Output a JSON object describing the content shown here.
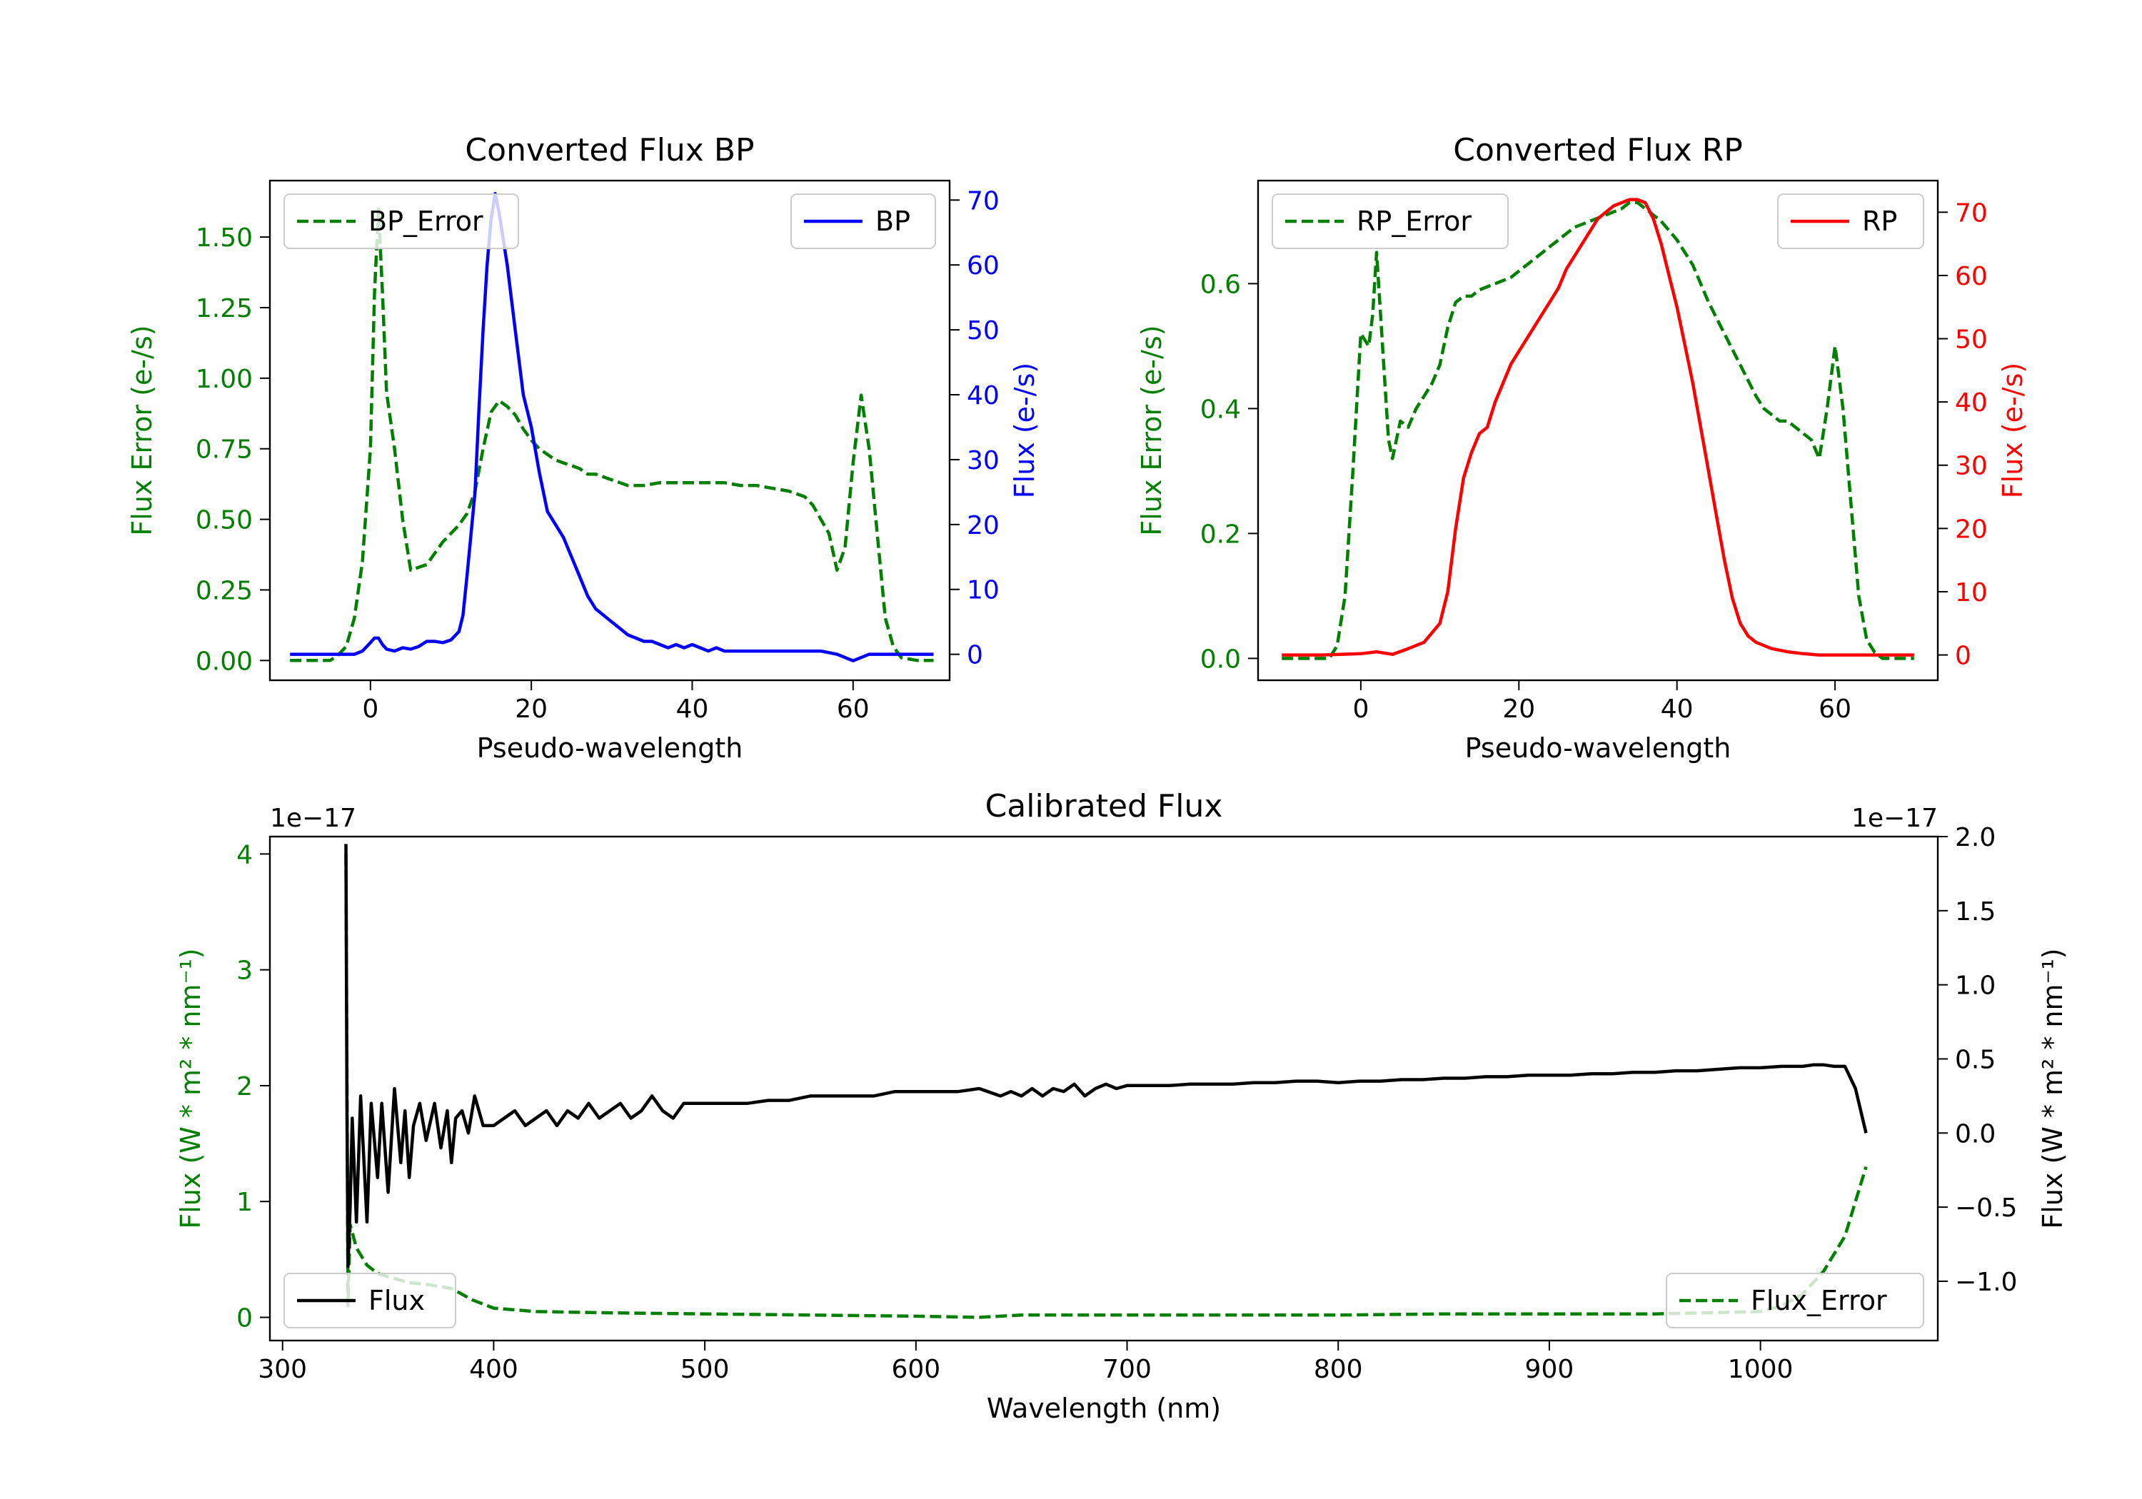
{
  "colors": {
    "green": "#007f00",
    "blue": "#0000ff",
    "red": "#ff0000",
    "black": "#000000"
  },
  "chart_data": [
    {
      "id": "bp",
      "type": "line",
      "title": "Converted Flux BP",
      "xlabel": "Pseudo-wavelength",
      "xlim": [
        -12.5,
        72
      ],
      "xticks": [
        0,
        20,
        40,
        60
      ],
      "left_axis": {
        "label": "Flux Error (e-/s)",
        "color": "#007f00",
        "ylim": [
          -0.07,
          1.7
        ],
        "ticks": [
          "0.00",
          "0.25",
          "0.50",
          "0.75",
          "1.00",
          "1.25",
          "1.50"
        ]
      },
      "right_axis": {
        "label": "Flux (e-/s)",
        "color": "#0000ff",
        "ylim": [
          -4,
          73
        ],
        "ticks": [
          "0",
          "10",
          "20",
          "30",
          "40",
          "50",
          "60",
          "70"
        ]
      },
      "series": [
        {
          "name": "BP_Error",
          "axis": "left",
          "style": "dashed",
          "color": "#007f00",
          "x": [
            -10,
            -5,
            -4,
            -3,
            -2,
            -1,
            0,
            0.5,
            1,
            1.5,
            2,
            3,
            4,
            5,
            6,
            7,
            8,
            9,
            10,
            11,
            12,
            13,
            14,
            15,
            16,
            17,
            18,
            19,
            20,
            21,
            22,
            23,
            24,
            25,
            26,
            27,
            28,
            29,
            30,
            32,
            34,
            36,
            38,
            40,
            42,
            44,
            46,
            48,
            50,
            52,
            54,
            55,
            56,
            57,
            58,
            59,
            60,
            61,
            62,
            63,
            64,
            65,
            66,
            68,
            70
          ],
          "y": [
            0,
            0,
            0.02,
            0.05,
            0.15,
            0.35,
            0.75,
            1.3,
            1.6,
            1.3,
            0.95,
            0.75,
            0.5,
            0.32,
            0.33,
            0.34,
            0.38,
            0.42,
            0.45,
            0.48,
            0.52,
            0.6,
            0.75,
            0.88,
            0.92,
            0.9,
            0.87,
            0.82,
            0.78,
            0.75,
            0.73,
            0.71,
            0.7,
            0.69,
            0.68,
            0.66,
            0.66,
            0.65,
            0.64,
            0.62,
            0.62,
            0.63,
            0.63,
            0.63,
            0.63,
            0.63,
            0.62,
            0.62,
            0.61,
            0.6,
            0.58,
            0.55,
            0.5,
            0.45,
            0.32,
            0.4,
            0.7,
            0.94,
            0.75,
            0.45,
            0.15,
            0.05,
            0.01,
            0,
            0
          ]
        },
        {
          "name": "BP",
          "axis": "right",
          "style": "solid",
          "color": "#0000ff",
          "x": [
            -10,
            -5,
            -2,
            -1,
            0,
            0.5,
            1,
            1.5,
            2,
            3,
            4,
            5,
            6,
            7,
            8,
            9,
            10,
            11,
            11.5,
            12,
            13,
            13.5,
            14,
            14.5,
            15,
            15.5,
            16,
            17,
            18,
            19,
            20,
            21,
            22,
            23,
            24,
            25,
            26,
            27,
            28,
            29,
            30,
            31,
            32,
            33,
            34,
            35,
            36,
            37,
            38,
            39,
            40,
            41,
            42,
            43,
            44,
            46,
            48,
            50,
            52,
            54,
            56,
            58,
            60,
            62,
            64,
            66,
            68,
            70
          ],
          "y": [
            0,
            0,
            0,
            0.5,
            1.8,
            2.5,
            2.5,
            1.5,
            0.8,
            0.5,
            1,
            0.8,
            1.2,
            2,
            2,
            1.8,
            2.2,
            3.5,
            6,
            12,
            25,
            38,
            50,
            60,
            67,
            71,
            68,
            60,
            50,
            40,
            35,
            28,
            22,
            20,
            18,
            15,
            12,
            9,
            7,
            6,
            5,
            4,
            3,
            2.5,
            2,
            2,
            1.5,
            1,
            1.5,
            1,
            1.5,
            1,
            0.5,
            1,
            0.5,
            0.5,
            0.5,
            0.5,
            0.5,
            0.5,
            0.5,
            0,
            -1,
            0,
            0,
            0,
            0,
            0
          ]
        }
      ],
      "legends": [
        {
          "entry": "BP_Error",
          "position": "upper-left"
        },
        {
          "entry": "BP",
          "position": "upper-right"
        }
      ]
    },
    {
      "id": "rp",
      "type": "line",
      "title": "Converted Flux RP",
      "xlabel": "Pseudo-wavelength",
      "xlim": [
        -13,
        73
      ],
      "xticks": [
        0,
        20,
        40,
        60
      ],
      "left_axis": {
        "label": "Flux Error (e-/s)",
        "color": "#007f00",
        "ylim": [
          -0.035,
          0.765
        ],
        "ticks": [
          "0.0",
          "0.2",
          "0.4",
          "0.6"
        ]
      },
      "right_axis": {
        "label": "Flux (e-/s)",
        "color": "#ff0000",
        "ylim": [
          -4,
          75
        ],
        "ticks": [
          "0",
          "10",
          "20",
          "30",
          "40",
          "50",
          "60",
          "70"
        ]
      },
      "series": [
        {
          "name": "RP_Error",
          "axis": "left",
          "style": "dashed",
          "color": "#007f00",
          "x": [
            -10,
            -5,
            -4,
            -3,
            -2,
            -1,
            0,
            1,
            1.5,
            2,
            2.5,
            3,
            3.5,
            4,
            5,
            6,
            7,
            8,
            9,
            10,
            11,
            12,
            13,
            14,
            15,
            17,
            19,
            21,
            23,
            25,
            27,
            29,
            31,
            33,
            34,
            35,
            36,
            37,
            38,
            40,
            42,
            44,
            46,
            48,
            50,
            51,
            52,
            53,
            54,
            55,
            56,
            57,
            58,
            59,
            60,
            61,
            62,
            63,
            64,
            65,
            66,
            70
          ],
          "y": [
            0,
            0,
            0,
            0.02,
            0.1,
            0.3,
            0.52,
            0.5,
            0.55,
            0.65,
            0.55,
            0.45,
            0.35,
            0.32,
            0.38,
            0.37,
            0.4,
            0.42,
            0.44,
            0.47,
            0.53,
            0.57,
            0.58,
            0.58,
            0.59,
            0.6,
            0.61,
            0.63,
            0.65,
            0.67,
            0.69,
            0.7,
            0.71,
            0.72,
            0.73,
            0.73,
            0.72,
            0.71,
            0.7,
            0.67,
            0.63,
            0.57,
            0.52,
            0.47,
            0.42,
            0.4,
            0.39,
            0.38,
            0.38,
            0.37,
            0.36,
            0.35,
            0.32,
            0.4,
            0.5,
            0.4,
            0.25,
            0.1,
            0.03,
            0.01,
            0,
            0
          ]
        },
        {
          "name": "RP",
          "axis": "right",
          "style": "solid",
          "color": "#ff0000",
          "x": [
            -10,
            -5,
            0,
            2,
            4,
            6,
            8,
            10,
            11,
            12,
            13,
            14,
            15,
            16,
            17,
            18,
            19,
            20,
            21,
            22,
            23,
            24,
            25,
            26,
            27,
            28,
            29,
            30,
            31,
            32,
            33,
            34,
            35,
            36,
            37,
            38,
            39,
            40,
            41,
            42,
            43,
            44,
            45,
            46,
            47,
            48,
            49,
            50,
            51,
            52,
            54,
            56,
            58,
            60,
            62,
            65,
            70
          ],
          "y": [
            0,
            0,
            0.2,
            0.5,
            0.1,
            1,
            2,
            5,
            10,
            20,
            28,
            32,
            35,
            36,
            40,
            43,
            46,
            48,
            50,
            52,
            54,
            56,
            58,
            61,
            63,
            65,
            67,
            69,
            70,
            71,
            71.5,
            72,
            72,
            71.5,
            69,
            65,
            60,
            55,
            49,
            43,
            36,
            29,
            22,
            15,
            9,
            5,
            3,
            2,
            1.5,
            1,
            0.5,
            0.2,
            0,
            0,
            0,
            0,
            0
          ]
        }
      ],
      "legends": [
        {
          "entry": "RP_Error",
          "position": "upper-left"
        },
        {
          "entry": "RP",
          "position": "upper-right"
        }
      ]
    },
    {
      "id": "cal",
      "type": "line",
      "title": "Calibrated Flux",
      "xlabel": "Wavelength (nm)",
      "xlim": [
        294,
        1084
      ],
      "xticks": [
        300,
        400,
        500,
        600,
        700,
        800,
        900,
        1000
      ],
      "left_axis": {
        "label": "Flux (W * m² * nm⁻¹)",
        "color": "#007f00",
        "offset_text": "1e−17",
        "ylim": [
          -0.2,
          4.15
        ],
        "ticks": [
          "0",
          "1",
          "2",
          "3",
          "4"
        ]
      },
      "right_axis": {
        "label": "Flux (W * m² * nm⁻¹)",
        "color": "#000000",
        "offset_text": "1e−17",
        "ylim": [
          -1.4,
          2.0
        ],
        "ticks": [
          "−1.0",
          "−0.5",
          "0.0",
          "0.5",
          "1.0",
          "1.5",
          "2.0"
        ]
      },
      "series": [
        {
          "name": "Flux_Error",
          "axis": "left",
          "style": "dashed",
          "color": "#007f00",
          "x": [
            330,
            331,
            332,
            335,
            340,
            345,
            350,
            360,
            370,
            380,
            390,
            400,
            420,
            450,
            500,
            550,
            600,
            630,
            650,
            700,
            750,
            800,
            850,
            900,
            950,
            1000,
            1010,
            1020,
            1030,
            1040,
            1045,
            1050
          ],
          "y": [
            4.0,
            0.1,
            0.8,
            0.6,
            0.45,
            0.38,
            0.35,
            0.3,
            0.28,
            0.25,
            0.15,
            0.08,
            0.05,
            0.04,
            0.03,
            0.02,
            0.01,
            0.0,
            0.02,
            0.02,
            0.02,
            0.02,
            0.03,
            0.03,
            0.03,
            0.05,
            0.1,
            0.2,
            0.4,
            0.7,
            1.0,
            1.3
          ]
        },
        {
          "name": "Flux",
          "axis": "right",
          "style": "solid",
          "color": "#000000",
          "x": [
            330,
            330.5,
            331,
            332,
            333,
            335,
            337,
            340,
            342,
            345,
            347,
            350,
            353,
            356,
            358,
            360,
            362,
            365,
            368,
            372,
            375,
            378,
            380,
            382,
            385,
            388,
            391,
            395,
            400,
            405,
            410,
            415,
            420,
            425,
            430,
            435,
            440,
            445,
            450,
            455,
            460,
            465,
            470,
            475,
            480,
            485,
            490,
            500,
            510,
            520,
            530,
            540,
            550,
            560,
            570,
            580,
            590,
            600,
            610,
            620,
            630,
            640,
            645,
            650,
            655,
            660,
            665,
            670,
            675,
            680,
            685,
            690,
            695,
            700,
            710,
            720,
            730,
            740,
            750,
            760,
            770,
            780,
            790,
            800,
            810,
            820,
            830,
            840,
            850,
            860,
            870,
            880,
            890,
            900,
            910,
            920,
            930,
            940,
            950,
            960,
            970,
            980,
            990,
            1000,
            1010,
            1020,
            1025,
            1030,
            1035,
            1040,
            1045,
            1050
          ],
          "y": [
            1.95,
            0.2,
            -0.9,
            -0.5,
            0.1,
            -0.6,
            0.25,
            -0.6,
            0.2,
            -0.3,
            0.2,
            -0.4,
            0.3,
            -0.2,
            0.15,
            -0.3,
            0.05,
            0.2,
            -0.05,
            0.2,
            -0.1,
            0.15,
            -0.2,
            0.1,
            0.15,
            0.0,
            0.25,
            0.05,
            0.05,
            0.1,
            0.15,
            0.05,
            0.1,
            0.15,
            0.05,
            0.15,
            0.1,
            0.2,
            0.1,
            0.15,
            0.2,
            0.1,
            0.15,
            0.25,
            0.15,
            0.1,
            0.2,
            0.2,
            0.2,
            0.2,
            0.22,
            0.22,
            0.25,
            0.25,
            0.25,
            0.25,
            0.28,
            0.28,
            0.28,
            0.28,
            0.3,
            0.25,
            0.28,
            0.25,
            0.3,
            0.25,
            0.3,
            0.28,
            0.33,
            0.25,
            0.3,
            0.33,
            0.3,
            0.32,
            0.32,
            0.32,
            0.33,
            0.33,
            0.33,
            0.34,
            0.34,
            0.35,
            0.35,
            0.34,
            0.35,
            0.35,
            0.36,
            0.36,
            0.37,
            0.37,
            0.38,
            0.38,
            0.39,
            0.39,
            0.39,
            0.4,
            0.4,
            0.41,
            0.41,
            0.42,
            0.42,
            0.43,
            0.44,
            0.44,
            0.45,
            0.45,
            0.46,
            0.46,
            0.45,
            0.45,
            0.3,
            0.0
          ]
        }
      ],
      "legends": [
        {
          "entry": "Flux",
          "position": "lower-left"
        },
        {
          "entry": "Flux_Error",
          "position": "lower-right"
        }
      ]
    }
  ]
}
